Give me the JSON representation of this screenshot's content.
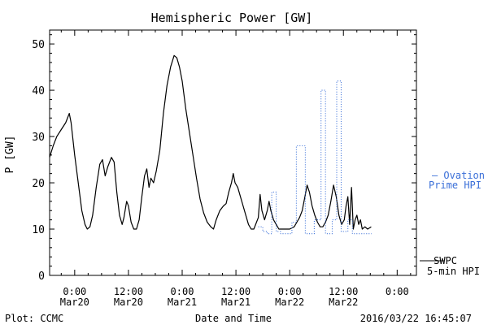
{
  "chart_data": {
    "type": "line",
    "title": "Hemispheric Power [GW]",
    "xlabel": "Date and Time",
    "ylabel": "P [GW]",
    "ylim": [
      0,
      53
    ],
    "xlim_hours": [
      -5.6,
      76.3
    ],
    "y_ticks": [
      0,
      10,
      20,
      30,
      40,
      50
    ],
    "x_ticks": [
      {
        "hours": 0,
        "time": "0:00",
        "date": "Mar20"
      },
      {
        "hours": 12,
        "time": "12:00",
        "date": "Mar20"
      },
      {
        "hours": 24,
        "time": "0:00",
        "date": "Mar21"
      },
      {
        "hours": 36,
        "time": "12:00",
        "date": "Mar21"
      },
      {
        "hours": 48,
        "time": "0:00",
        "date": "Mar22"
      },
      {
        "hours": 60,
        "time": "12:00",
        "date": "Mar22"
      },
      {
        "hours": 72,
        "time": "0:00",
        "date": ""
      }
    ],
    "grid": false,
    "series": [
      {
        "name": "SWPC 5-min HPI",
        "color": "#000000",
        "style": "solid",
        "points": [
          [
            -5.6,
            25.5
          ],
          [
            -4.8,
            28
          ],
          [
            -4.0,
            30
          ],
          [
            -3.0,
            31.5
          ],
          [
            -2.0,
            33
          ],
          [
            -1.2,
            35
          ],
          [
            -0.8,
            33
          ],
          [
            0.0,
            26
          ],
          [
            0.8,
            20
          ],
          [
            1.6,
            14
          ],
          [
            2.3,
            11
          ],
          [
            2.8,
            10
          ],
          [
            3.4,
            10.5
          ],
          [
            4.0,
            13
          ],
          [
            4.8,
            19
          ],
          [
            5.6,
            24
          ],
          [
            6.2,
            25
          ],
          [
            6.8,
            21.5
          ],
          [
            7.4,
            23.5
          ],
          [
            8.2,
            25.5
          ],
          [
            8.8,
            24.5
          ],
          [
            9.4,
            18
          ],
          [
            10.0,
            13
          ],
          [
            10.6,
            11
          ],
          [
            11.0,
            12.5
          ],
          [
            11.6,
            16
          ],
          [
            12.0,
            15
          ],
          [
            12.6,
            11.5
          ],
          [
            13.2,
            10
          ],
          [
            13.8,
            10
          ],
          [
            14.4,
            12
          ],
          [
            15.0,
            17
          ],
          [
            15.6,
            21.5
          ],
          [
            16.1,
            23
          ],
          [
            16.6,
            19
          ],
          [
            17.0,
            21
          ],
          [
            17.6,
            20
          ],
          [
            18.2,
            22.5
          ],
          [
            19.0,
            27
          ],
          [
            19.8,
            35
          ],
          [
            20.6,
            41
          ],
          [
            21.4,
            45
          ],
          [
            22.2,
            47.5
          ],
          [
            22.8,
            47
          ],
          [
            23.4,
            45
          ],
          [
            24.0,
            42
          ],
          [
            24.8,
            36
          ],
          [
            25.6,
            31
          ],
          [
            26.4,
            26
          ],
          [
            27.2,
            21
          ],
          [
            28.0,
            16.5
          ],
          [
            28.8,
            13.5
          ],
          [
            29.6,
            11.5
          ],
          [
            30.4,
            10.5
          ],
          [
            31.0,
            10
          ],
          [
            31.6,
            12
          ],
          [
            32.4,
            14
          ],
          [
            33.2,
            15
          ],
          [
            33.8,
            15.5
          ],
          [
            34.4,
            18
          ],
          [
            35.0,
            20
          ],
          [
            35.4,
            22
          ],
          [
            35.8,
            20
          ],
          [
            36.4,
            19
          ],
          [
            37.0,
            17
          ],
          [
            37.6,
            15
          ],
          [
            38.2,
            13
          ],
          [
            38.8,
            11
          ],
          [
            39.4,
            10
          ],
          [
            40.0,
            10
          ],
          [
            40.6,
            11.5
          ],
          [
            41.0,
            12.5
          ],
          [
            41.4,
            17.5
          ],
          [
            41.8,
            14
          ],
          [
            42.4,
            12
          ],
          [
            43.0,
            14
          ],
          [
            43.4,
            16
          ],
          [
            43.8,
            14
          ],
          [
            44.4,
            12
          ],
          [
            45.0,
            11
          ],
          [
            45.6,
            10
          ],
          [
            46.2,
            10
          ],
          [
            47.0,
            10
          ],
          [
            48.0,
            10
          ],
          [
            49.0,
            10.5
          ],
          [
            49.6,
            11.5
          ],
          [
            50.2,
            12.5
          ],
          [
            50.8,
            14
          ],
          [
            51.4,
            17
          ],
          [
            51.9,
            19.5
          ],
          [
            52.4,
            18
          ],
          [
            53.0,
            15
          ],
          [
            53.6,
            13
          ],
          [
            54.2,
            11.5
          ],
          [
            54.8,
            10.5
          ],
          [
            55.4,
            10.5
          ],
          [
            56.0,
            11.5
          ],
          [
            56.6,
            13
          ],
          [
            57.2,
            16
          ],
          [
            57.8,
            19.5
          ],
          [
            58.4,
            17
          ],
          [
            59.0,
            13
          ],
          [
            59.6,
            11
          ],
          [
            60.2,
            12
          ],
          [
            60.6,
            15
          ],
          [
            61.0,
            17
          ],
          [
            61.4,
            11
          ],
          [
            61.8,
            19
          ],
          [
            62.2,
            10
          ],
          [
            62.6,
            12
          ],
          [
            63.0,
            13
          ],
          [
            63.4,
            11
          ],
          [
            63.8,
            12
          ],
          [
            64.2,
            10
          ],
          [
            64.8,
            10.5
          ],
          [
            65.4,
            10
          ],
          [
            66.2,
            10.5
          ]
        ]
      },
      {
        "name": "Ovation Prime HPI",
        "color": "#3a6fd8",
        "style": "dotted",
        "points": [
          [
            41.0,
            10.5
          ],
          [
            42.0,
            10.5
          ],
          [
            42.0,
            9.5
          ],
          [
            43.0,
            9.5
          ],
          [
            43.0,
            9.0
          ],
          [
            44.0,
            9.0
          ],
          [
            44.0,
            18.0
          ],
          [
            45.0,
            18.0
          ],
          [
            45.0,
            9.5
          ],
          [
            46.0,
            9.5
          ],
          [
            46.0,
            9.0
          ],
          [
            48.5,
            9.0
          ],
          [
            48.5,
            11.5
          ],
          [
            49.5,
            11.5
          ],
          [
            49.5,
            28.0
          ],
          [
            51.5,
            28.0
          ],
          [
            51.5,
            9.0
          ],
          [
            53.5,
            9.0
          ],
          [
            53.5,
            12.0
          ],
          [
            55.0,
            12.0
          ],
          [
            55.0,
            40.0
          ],
          [
            56.0,
            40.0
          ],
          [
            56.0,
            9.0
          ],
          [
            57.5,
            9.0
          ],
          [
            57.5,
            12.0
          ],
          [
            58.5,
            12.0
          ],
          [
            58.5,
            42.0
          ],
          [
            59.5,
            42.0
          ],
          [
            59.5,
            9.5
          ],
          [
            61.0,
            9.5
          ],
          [
            61.0,
            12.0
          ],
          [
            62.0,
            12.0
          ],
          [
            62.0,
            9.0
          ],
          [
            66.3,
            9.0
          ]
        ]
      }
    ],
    "legend": [
      {
        "text_lines": [
          "— Ovation",
          "Prime HPI"
        ],
        "color": "#3a6fd8",
        "placement": "right"
      },
      {
        "text_lines": [
          "SWPC",
          "5-min HPI"
        ],
        "color": "#000000",
        "placement": "right"
      }
    ]
  },
  "footer": {
    "left": "Plot: CCMC",
    "right": "2016/03/22 16:45:07"
  }
}
